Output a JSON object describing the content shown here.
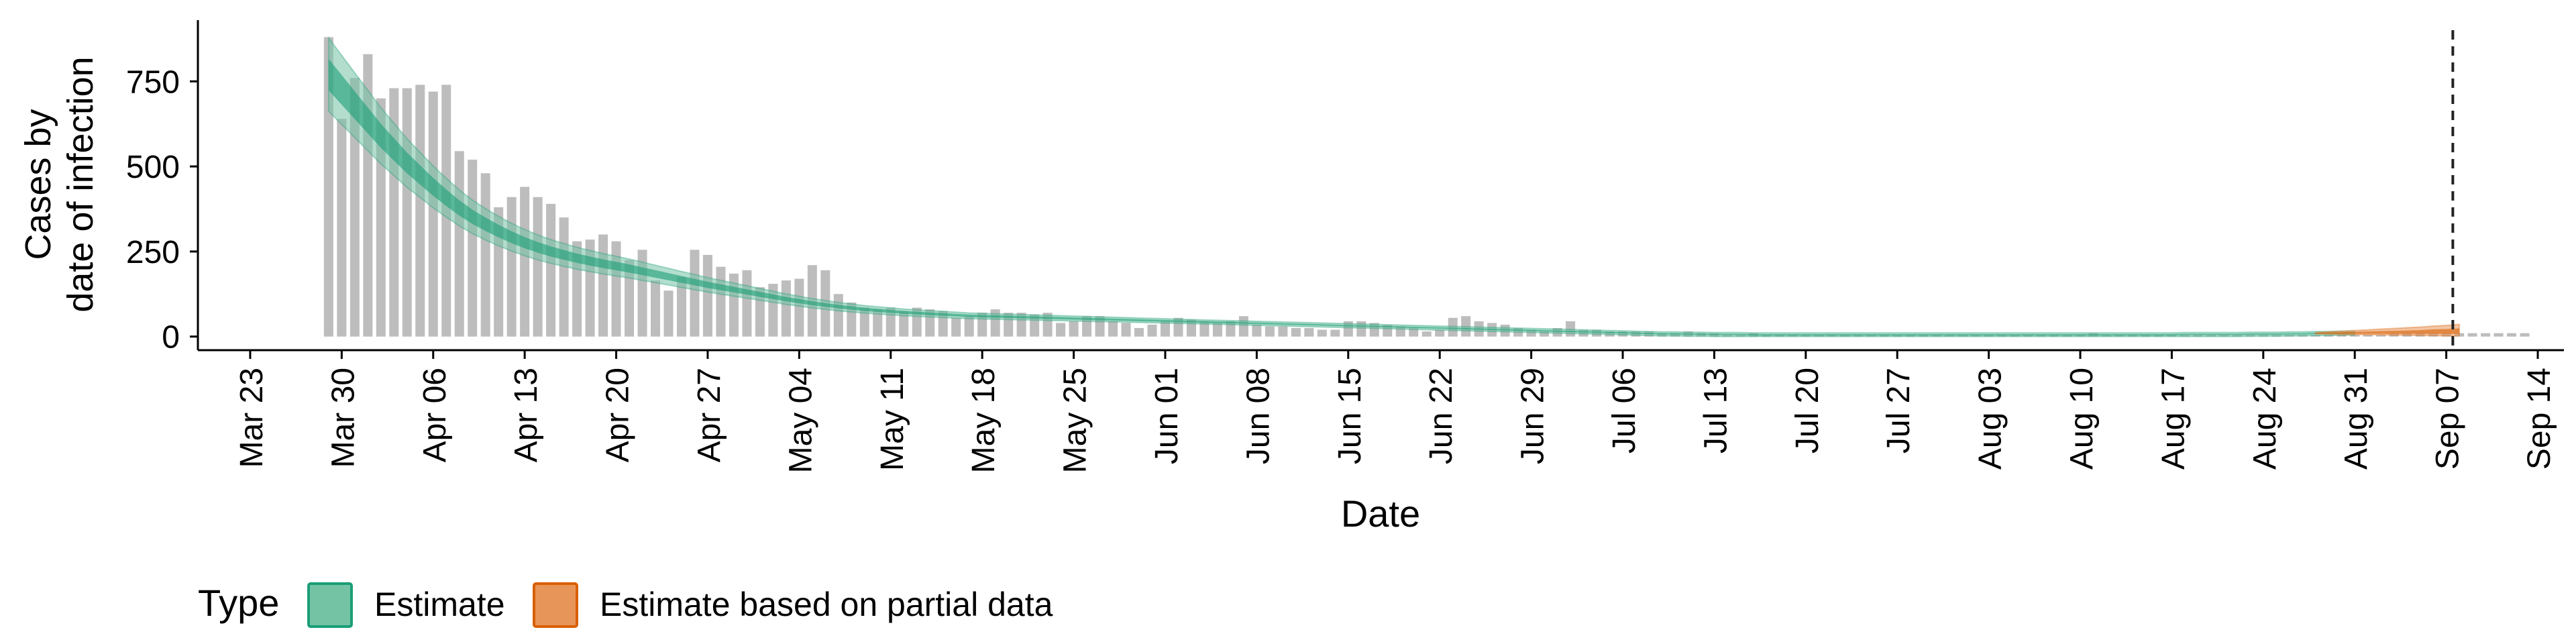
{
  "chart_data": {
    "type": "bar",
    "xlabel": "Date",
    "ylabel_lines": [
      "Cases by",
      "date of infection"
    ],
    "yticks": [
      0,
      250,
      500,
      750
    ],
    "ylim": [
      -40,
      930
    ],
    "xlim": [
      "2020-03-19",
      "2020-09-16"
    ],
    "xticks": [
      "2020-03-23",
      "2020-03-30",
      "2020-04-06",
      "2020-04-13",
      "2020-04-20",
      "2020-04-27",
      "2020-05-04",
      "2020-05-11",
      "2020-05-18",
      "2020-05-25",
      "2020-06-01",
      "2020-06-08",
      "2020-06-15",
      "2020-06-22",
      "2020-06-29",
      "2020-07-06",
      "2020-07-13",
      "2020-07-20",
      "2020-07-27",
      "2020-08-03",
      "2020-08-10",
      "2020-08-17",
      "2020-08-24",
      "2020-08-31",
      "2020-09-07",
      "2020-09-14"
    ],
    "xtick_labels": [
      "Mar 23",
      "Mar 30",
      "Apr 06",
      "Apr 13",
      "Apr 20",
      "Apr 27",
      "May 04",
      "May 11",
      "May 18",
      "May 25",
      "Jun 01",
      "Jun 08",
      "Jun 15",
      "Jun 22",
      "Jun 29",
      "Jul 06",
      "Jul 13",
      "Jul 20",
      "Jul 27",
      "Aug 03",
      "Aug 10",
      "Aug 17",
      "Aug 24",
      "Aug 31",
      "Sep 07",
      "Sep 14"
    ],
    "bars": {
      "start_date": "2020-03-29",
      "color": "#bdbdbd",
      "values": [
        880,
        640,
        760,
        830,
        700,
        730,
        730,
        740,
        720,
        740,
        545,
        520,
        480,
        380,
        410,
        440,
        410,
        390,
        350,
        280,
        285,
        300,
        280,
        225,
        255,
        165,
        135,
        175,
        255,
        240,
        205,
        185,
        195,
        145,
        155,
        165,
        170,
        210,
        195,
        125,
        100,
        85,
        80,
        85,
        75,
        85,
        80,
        75,
        55,
        60,
        70,
        80,
        70,
        70,
        65,
        70,
        40,
        45,
        60,
        60,
        45,
        40,
        25,
        35,
        45,
        55,
        50,
        45,
        40,
        45,
        60,
        35,
        30,
        30,
        25,
        25,
        20,
        20,
        45,
        45,
        40,
        35,
        30,
        25,
        15,
        20,
        55,
        60,
        45,
        40,
        35,
        25,
        20,
        15,
        25,
        45,
        20,
        20,
        15,
        15,
        15,
        15,
        10,
        10,
        15,
        10,
        10,
        5,
        5,
        10,
        5,
        5,
        5,
        5,
        5,
        5,
        5,
        5,
        5,
        5,
        5,
        5,
        5,
        5,
        5,
        5,
        5,
        5,
        5,
        5,
        5,
        5,
        5,
        5,
        5,
        10,
        5,
        5,
        5,
        5,
        5,
        5,
        5,
        5,
        5,
        5,
        5,
        5,
        5,
        5,
        5,
        5,
        5,
        5,
        5,
        5,
        5,
        5,
        10,
        10,
        10,
        10,
        10,
        10,
        10,
        10,
        10,
        10,
        10
      ]
    },
    "series": [
      {
        "name": "Estimate",
        "color": "#1b9e77",
        "fill": "#74c3a5",
        "start_date": "2020-03-29",
        "median": [
          770,
          725,
          680,
          635,
          590,
          550,
          510,
          475,
          440,
          408,
          378,
          352,
          330,
          310,
          292,
          276,
          262,
          250,
          240,
          230,
          222,
          214,
          207,
          200,
          192,
          184,
          176,
          168,
          160,
          152,
          145,
          138,
          131,
          124,
          117,
          110,
          104,
          98,
          93,
          88,
          84,
          80,
          77,
          74,
          71,
          69,
          67,
          65,
          63,
          61,
          60,
          59,
          58,
          57,
          56,
          55,
          54,
          53,
          52,
          51,
          50,
          49,
          48,
          47,
          46,
          45,
          44,
          43,
          42,
          41,
          40,
          39,
          38,
          37,
          36,
          35,
          34,
          33,
          32,
          31,
          30,
          29,
          28,
          27,
          26,
          25,
          24,
          23,
          22,
          21,
          20,
          19,
          18,
          17,
          16,
          15,
          14,
          13,
          12,
          11,
          10,
          9,
          8,
          8,
          7,
          7,
          6,
          6,
          6,
          5,
          5,
          5,
          5,
          5,
          5,
          5,
          5,
          5,
          5,
          5,
          5,
          5,
          5,
          5,
          5,
          5,
          5,
          5,
          5,
          5,
          5,
          5,
          5,
          5,
          5,
          5,
          5,
          5,
          5,
          5,
          5,
          5,
          6,
          6,
          6,
          6,
          6,
          7,
          7,
          7,
          8,
          8,
          9,
          9,
          10,
          10
        ],
        "outer_spread": 0.14,
        "outer_min": 6,
        "inner_spread": 0.06,
        "inner_min": 2
      },
      {
        "name": "Estimate based on partial data",
        "color": "#d95f02",
        "fill": "#e8955a",
        "start_date": "2020-08-28",
        "median": [
          10,
          10,
          10,
          11,
          11,
          12,
          12,
          13,
          14,
          15,
          15,
          16
        ],
        "outer_high": [
          12,
          14,
          16,
          18,
          20,
          22,
          24,
          26,
          28,
          31,
          33,
          36
        ],
        "outer_low": [
          8,
          7,
          6,
          6,
          5,
          5,
          4,
          4,
          3,
          3,
          2,
          2
        ],
        "inner_high": [
          11,
          12,
          13,
          14,
          15,
          16,
          17,
          18,
          19,
          21,
          22,
          24
        ],
        "inner_low": [
          9,
          9,
          8,
          8,
          8,
          8,
          8,
          8,
          8,
          8,
          8,
          8
        ]
      }
    ],
    "vline_date": "2020-09-07",
    "legend": {
      "title": "Type",
      "position": "bottom-left",
      "items": [
        {
          "label": "Estimate",
          "fill": "#74c3a5",
          "stroke": "#1b9e77"
        },
        {
          "label": "Estimate based on partial data",
          "fill": "#e8955a",
          "stroke": "#d95f02"
        }
      ]
    },
    "grid": false
  }
}
